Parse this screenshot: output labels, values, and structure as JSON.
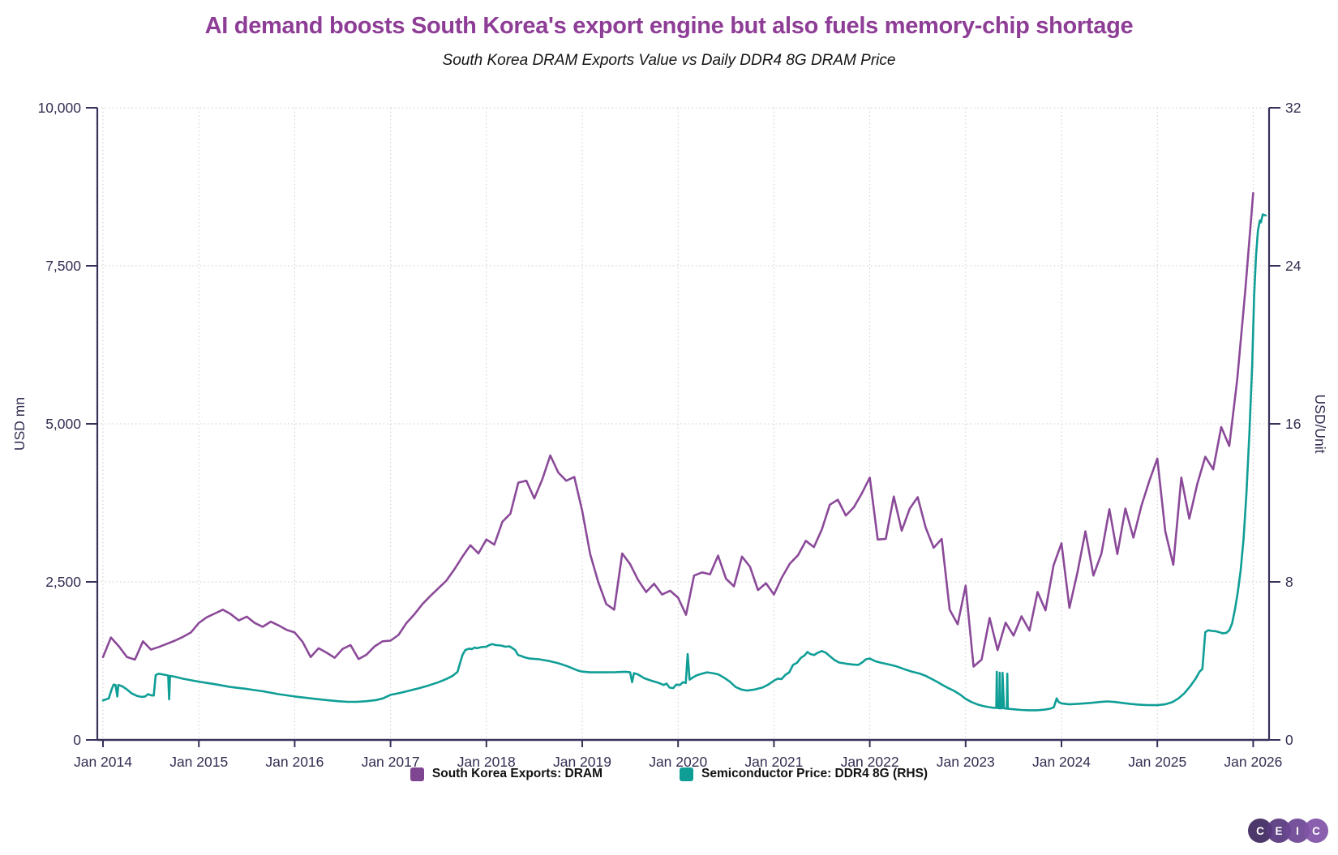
{
  "header": {
    "title": "AI demand boosts South Korea's export engine but also fuels memory-chip shortage",
    "subtitle": "South Korea DRAM Exports Value vs Daily DDR4 8G DRAM Price"
  },
  "legend": {
    "items": [
      {
        "label": "South Korea Exports: DRAM",
        "color": "#7e4590"
      },
      {
        "label": "Semiconductor Price: DDR4 8G (RHS)",
        "color": "#0f9e96"
      }
    ]
  },
  "logo": {
    "letters": [
      "C",
      "E",
      "I",
      "C"
    ],
    "colors": [
      "#402a60",
      "#58397e",
      "#6d4694",
      "#8153a8"
    ]
  },
  "chart_data": {
    "type": "line",
    "title": "AI demand boosts South Korea's export engine but also fuels memory-chip shortage",
    "subtitle": "South Korea DRAM Exports Value vs Daily DDR4 8G DRAM Price",
    "grid": "dotted",
    "legend_position": "bottom",
    "x_axis": {
      "ticks": [
        "Jan 2014",
        "Jan 2015",
        "Jan 2016",
        "Jan 2017",
        "Jan 2018",
        "Jan 2019",
        "Jan 2020",
        "Jan 2021",
        "Jan 2022",
        "Jan 2023",
        "Jan 2024",
        "Jan 2025",
        "Jan 2026"
      ],
      "tick_years": [
        2014,
        2015,
        2016,
        2017,
        2018,
        2019,
        2020,
        2021,
        2022,
        2023,
        2024,
        2025,
        2026
      ]
    },
    "left_axis": {
      "label": "USD mn",
      "ticks": [
        0,
        2500,
        5000,
        7500,
        10000
      ],
      "range": [
        0,
        10000
      ]
    },
    "right_axis": {
      "label": "USD/Unit",
      "ticks": [
        0,
        8,
        16,
        24,
        32
      ],
      "range": [
        0,
        32
      ]
    },
    "series": [
      {
        "name": "South Korea Exports: DRAM",
        "axis": "left",
        "color": "#8b4a99",
        "interval": "monthly",
        "start_year": 2014,
        "values": [
          1310,
          1620,
          1480,
          1310,
          1270,
          1560,
          1430,
          1470,
          1520,
          1570,
          1630,
          1700,
          1850,
          1940,
          2000,
          2060,
          1990,
          1890,
          1950,
          1850,
          1790,
          1870,
          1810,
          1740,
          1700,
          1550,
          1310,
          1450,
          1380,
          1300,
          1440,
          1500,
          1280,
          1350,
          1480,
          1560,
          1570,
          1660,
          1850,
          1990,
          2150,
          2280,
          2400,
          2520,
          2700,
          2900,
          3080,
          2950,
          3170,
          3090,
          3450,
          3580,
          4070,
          4100,
          3820,
          4120,
          4500,
          4230,
          4100,
          4160,
          3620,
          2940,
          2500,
          2150,
          2060,
          2950,
          2780,
          2530,
          2340,
          2470,
          2300,
          2360,
          2250,
          1980,
          2600,
          2650,
          2620,
          2915,
          2550,
          2430,
          2900,
          2740,
          2370,
          2480,
          2300,
          2570,
          2790,
          2920,
          3150,
          3050,
          3330,
          3720,
          3800,
          3550,
          3680,
          3900,
          4150,
          3170,
          3180,
          3850,
          3310,
          3660,
          3840,
          3360,
          3040,
          3180,
          2060,
          1830,
          2440,
          1160,
          1270,
          1930,
          1420,
          1855,
          1650,
          1955,
          1730,
          2340,
          2050,
          2760,
          3110,
          2090,
          2650,
          3300,
          2600,
          2950,
          3650,
          2940,
          3660,
          3200,
          3700,
          4100,
          4450,
          3300,
          2770,
          4150,
          3500,
          4050,
          4480,
          4280,
          4950,
          4650,
          5700,
          7100,
          8650
        ]
      },
      {
        "name": "Semiconductor Price: DDR4 8G (RHS)",
        "axis": "right",
        "color": "#0f9e96",
        "interval": "daily",
        "points": [
          [
            2014.0,
            2.0
          ],
          [
            2014.03,
            2.05
          ],
          [
            2014.06,
            2.1
          ],
          [
            2014.09,
            2.55
          ],
          [
            2014.11,
            2.8
          ],
          [
            2014.13,
            2.78
          ],
          [
            2014.15,
            2.2
          ],
          [
            2014.16,
            2.78
          ],
          [
            2014.2,
            2.72
          ],
          [
            2014.25,
            2.55
          ],
          [
            2014.3,
            2.35
          ],
          [
            2014.36,
            2.22
          ],
          [
            2014.4,
            2.18
          ],
          [
            2014.44,
            2.2
          ],
          [
            2014.47,
            2.32
          ],
          [
            2014.5,
            2.26
          ],
          [
            2014.53,
            2.25
          ],
          [
            2014.55,
            3.28
          ],
          [
            2014.58,
            3.35
          ],
          [
            2014.62,
            3.32
          ],
          [
            2014.66,
            3.28
          ],
          [
            2014.68,
            3.26
          ],
          [
            2014.69,
            2.05
          ],
          [
            2014.7,
            3.24
          ],
          [
            2014.75,
            3.2
          ],
          [
            2014.83,
            3.1
          ],
          [
            2014.92,
            3.02
          ],
          [
            2015.0,
            2.95
          ],
          [
            2015.17,
            2.82
          ],
          [
            2015.33,
            2.68
          ],
          [
            2015.5,
            2.58
          ],
          [
            2015.67,
            2.46
          ],
          [
            2015.83,
            2.32
          ],
          [
            2016.0,
            2.2
          ],
          [
            2016.17,
            2.1
          ],
          [
            2016.33,
            2.02
          ],
          [
            2016.45,
            1.96
          ],
          [
            2016.55,
            1.93
          ],
          [
            2016.65,
            1.93
          ],
          [
            2016.75,
            1.96
          ],
          [
            2016.85,
            2.02
          ],
          [
            2016.92,
            2.1
          ],
          [
            2017.0,
            2.28
          ],
          [
            2017.1,
            2.38
          ],
          [
            2017.2,
            2.5
          ],
          [
            2017.3,
            2.62
          ],
          [
            2017.4,
            2.76
          ],
          [
            2017.5,
            2.92
          ],
          [
            2017.58,
            3.08
          ],
          [
            2017.65,
            3.25
          ],
          [
            2017.7,
            3.45
          ],
          [
            2017.72,
            3.8
          ],
          [
            2017.75,
            4.3
          ],
          [
            2017.78,
            4.55
          ],
          [
            2017.82,
            4.62
          ],
          [
            2017.85,
            4.6
          ],
          [
            2017.88,
            4.68
          ],
          [
            2017.9,
            4.64
          ],
          [
            2017.95,
            4.7
          ],
          [
            2018.0,
            4.72
          ],
          [
            2018.03,
            4.8
          ],
          [
            2018.06,
            4.85
          ],
          [
            2018.1,
            4.8
          ],
          [
            2018.15,
            4.78
          ],
          [
            2018.2,
            4.72
          ],
          [
            2018.24,
            4.74
          ],
          [
            2018.28,
            4.62
          ],
          [
            2018.3,
            4.55
          ],
          [
            2018.33,
            4.3
          ],
          [
            2018.36,
            4.25
          ],
          [
            2018.4,
            4.18
          ],
          [
            2018.45,
            4.12
          ],
          [
            2018.55,
            4.08
          ],
          [
            2018.65,
            4.0
          ],
          [
            2018.75,
            3.88
          ],
          [
            2018.85,
            3.72
          ],
          [
            2018.95,
            3.52
          ],
          [
            2019.0,
            3.46
          ],
          [
            2019.08,
            3.42
          ],
          [
            2019.2,
            3.42
          ],
          [
            2019.35,
            3.43
          ],
          [
            2019.45,
            3.45
          ],
          [
            2019.5,
            3.42
          ],
          [
            2019.52,
            2.92
          ],
          [
            2019.54,
            3.38
          ],
          [
            2019.58,
            3.32
          ],
          [
            2019.65,
            3.12
          ],
          [
            2019.72,
            3.0
          ],
          [
            2019.8,
            2.88
          ],
          [
            2019.85,
            2.78
          ],
          [
            2019.88,
            2.85
          ],
          [
            2019.91,
            2.65
          ],
          [
            2019.95,
            2.62
          ],
          [
            2019.98,
            2.8
          ],
          [
            2020.02,
            2.78
          ],
          [
            2020.05,
            2.92
          ],
          [
            2020.08,
            2.88
          ],
          [
            2020.1,
            4.35
          ],
          [
            2020.12,
            3.05
          ],
          [
            2020.16,
            3.18
          ],
          [
            2020.2,
            3.28
          ],
          [
            2020.25,
            3.35
          ],
          [
            2020.3,
            3.42
          ],
          [
            2020.36,
            3.38
          ],
          [
            2020.42,
            3.32
          ],
          [
            2020.48,
            3.15
          ],
          [
            2020.54,
            2.95
          ],
          [
            2020.6,
            2.68
          ],
          [
            2020.66,
            2.55
          ],
          [
            2020.72,
            2.5
          ],
          [
            2020.8,
            2.55
          ],
          [
            2020.88,
            2.65
          ],
          [
            2020.94,
            2.8
          ],
          [
            2021.0,
            3.0
          ],
          [
            2021.04,
            3.1
          ],
          [
            2021.08,
            3.08
          ],
          [
            2021.12,
            3.3
          ],
          [
            2021.16,
            3.42
          ],
          [
            2021.2,
            3.8
          ],
          [
            2021.24,
            3.9
          ],
          [
            2021.28,
            4.15
          ],
          [
            2021.32,
            4.28
          ],
          [
            2021.35,
            4.45
          ],
          [
            2021.38,
            4.35
          ],
          [
            2021.42,
            4.3
          ],
          [
            2021.46,
            4.42
          ],
          [
            2021.5,
            4.5
          ],
          [
            2021.54,
            4.42
          ],
          [
            2021.58,
            4.25
          ],
          [
            2021.63,
            4.05
          ],
          [
            2021.68,
            3.92
          ],
          [
            2021.75,
            3.86
          ],
          [
            2021.82,
            3.82
          ],
          [
            2021.88,
            3.8
          ],
          [
            2021.92,
            3.92
          ],
          [
            2021.96,
            4.08
          ],
          [
            2022.0,
            4.12
          ],
          [
            2022.06,
            3.98
          ],
          [
            2022.12,
            3.9
          ],
          [
            2022.2,
            3.82
          ],
          [
            2022.28,
            3.72
          ],
          [
            2022.36,
            3.58
          ],
          [
            2022.44,
            3.46
          ],
          [
            2022.52,
            3.36
          ],
          [
            2022.58,
            3.25
          ],
          [
            2022.64,
            3.1
          ],
          [
            2022.7,
            2.95
          ],
          [
            2022.76,
            2.78
          ],
          [
            2022.82,
            2.62
          ],
          [
            2022.88,
            2.48
          ],
          [
            2022.94,
            2.3
          ],
          [
            2023.0,
            2.08
          ],
          [
            2023.06,
            1.92
          ],
          [
            2023.12,
            1.8
          ],
          [
            2023.18,
            1.72
          ],
          [
            2023.24,
            1.66
          ],
          [
            2023.3,
            1.62
          ],
          [
            2023.32,
            1.62
          ],
          [
            2023.325,
            3.45
          ],
          [
            2023.33,
            1.62
          ],
          [
            2023.35,
            1.6
          ],
          [
            2023.355,
            3.4
          ],
          [
            2023.36,
            1.6
          ],
          [
            2023.38,
            1.6
          ],
          [
            2023.385,
            3.4
          ],
          [
            2023.4,
            1.6
          ],
          [
            2023.43,
            1.58
          ],
          [
            2023.435,
            3.35
          ],
          [
            2023.44,
            1.58
          ],
          [
            2023.5,
            1.55
          ],
          [
            2023.58,
            1.52
          ],
          [
            2023.66,
            1.5
          ],
          [
            2023.74,
            1.5
          ],
          [
            2023.82,
            1.53
          ],
          [
            2023.88,
            1.58
          ],
          [
            2023.92,
            1.65
          ],
          [
            2023.95,
            2.1
          ],
          [
            2023.97,
            1.92
          ],
          [
            2024.0,
            1.85
          ],
          [
            2024.08,
            1.8
          ],
          [
            2024.16,
            1.82
          ],
          [
            2024.24,
            1.85
          ],
          [
            2024.32,
            1.88
          ],
          [
            2024.4,
            1.92
          ],
          [
            2024.48,
            1.95
          ],
          [
            2024.56,
            1.92
          ],
          [
            2024.64,
            1.87
          ],
          [
            2024.72,
            1.82
          ],
          [
            2024.8,
            1.79
          ],
          [
            2024.88,
            1.77
          ],
          [
            2024.95,
            1.76
          ],
          [
            2025.0,
            1.76
          ],
          [
            2025.08,
            1.8
          ],
          [
            2025.16,
            1.92
          ],
          [
            2025.22,
            2.1
          ],
          [
            2025.28,
            2.35
          ],
          [
            2025.34,
            2.7
          ],
          [
            2025.4,
            3.1
          ],
          [
            2025.44,
            3.45
          ],
          [
            2025.47,
            3.6
          ],
          [
            2025.5,
            5.45
          ],
          [
            2025.53,
            5.55
          ],
          [
            2025.57,
            5.52
          ],
          [
            2025.61,
            5.5
          ],
          [
            2025.65,
            5.45
          ],
          [
            2025.68,
            5.4
          ],
          [
            2025.72,
            5.42
          ],
          [
            2025.75,
            5.55
          ],
          [
            2025.78,
            5.9
          ],
          [
            2025.81,
            6.6
          ],
          [
            2025.84,
            7.5
          ],
          [
            2025.87,
            8.6
          ],
          [
            2025.9,
            10.2
          ],
          [
            2025.93,
            12.5
          ],
          [
            2025.96,
            15.5
          ],
          [
            2025.99,
            19.0
          ],
          [
            2026.01,
            22.5
          ],
          [
            2026.03,
            24.5
          ],
          [
            2026.05,
            25.8
          ],
          [
            2026.07,
            26.3
          ],
          [
            2026.08,
            26.2
          ],
          [
            2026.1,
            26.6
          ],
          [
            2026.13,
            26.55
          ]
        ]
      }
    ]
  }
}
